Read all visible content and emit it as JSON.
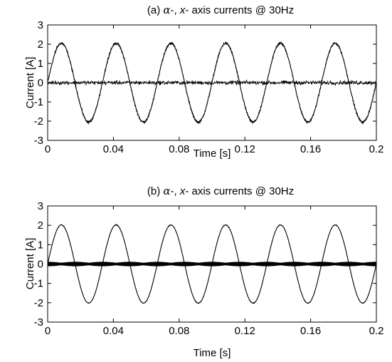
{
  "chart_data": [
    {
      "type": "line",
      "title": "(a) α-, x- axis currents @ 30Hz",
      "title_parts": {
        "prefix": "(a) ",
        "alpha": "α",
        "mid": "-, ",
        "x": "x",
        "suffix": "- axis currents @ 30Hz"
      },
      "xlabel": "Time [s]",
      "ylabel": "Current [A]",
      "xlim": [
        0,
        0.2
      ],
      "ylim": [
        -3,
        3
      ],
      "xticks": [
        "0",
        "0.04",
        "0.08",
        "0.12",
        "0.16",
        "0.2"
      ],
      "yticks": [
        "3",
        "2",
        "1",
        "0",
        "-1",
        "-2",
        "-3"
      ],
      "grid": false,
      "series": [
        {
          "kind": "sine",
          "amplitude": 2.05,
          "frequency_hz": 30,
          "noise": "moderate ripple",
          "color": "#000000"
        },
        {
          "kind": "noise",
          "amplitude": 0.15,
          "mean": 0,
          "color": "#000000"
        }
      ]
    },
    {
      "type": "line",
      "title": "(b) α-, x- axis currents @ 30Hz",
      "title_parts": {
        "prefix": "(b) ",
        "alpha": "α",
        "mid": "-, ",
        "x": "x",
        "suffix": "- axis currents @ 30Hz"
      },
      "xlabel": "Time [s]",
      "ylabel": "Current [A]",
      "xlim": [
        0,
        0.2
      ],
      "ylim": [
        -3,
        3
      ],
      "xticks": [
        "0",
        "0.04",
        "0.08",
        "0.12",
        "0.16",
        "0.2"
      ],
      "yticks": [
        "3",
        "2",
        "1",
        "0",
        "-1",
        "-2",
        "-3"
      ],
      "grid": false,
      "series": [
        {
          "kind": "sine",
          "amplitude": 2.02,
          "frequency_hz": 30,
          "noise": "small",
          "color": "#000000"
        },
        {
          "kind": "ripple",
          "amplitude": 0.12,
          "mean": 0,
          "color": "#000000"
        }
      ]
    }
  ]
}
